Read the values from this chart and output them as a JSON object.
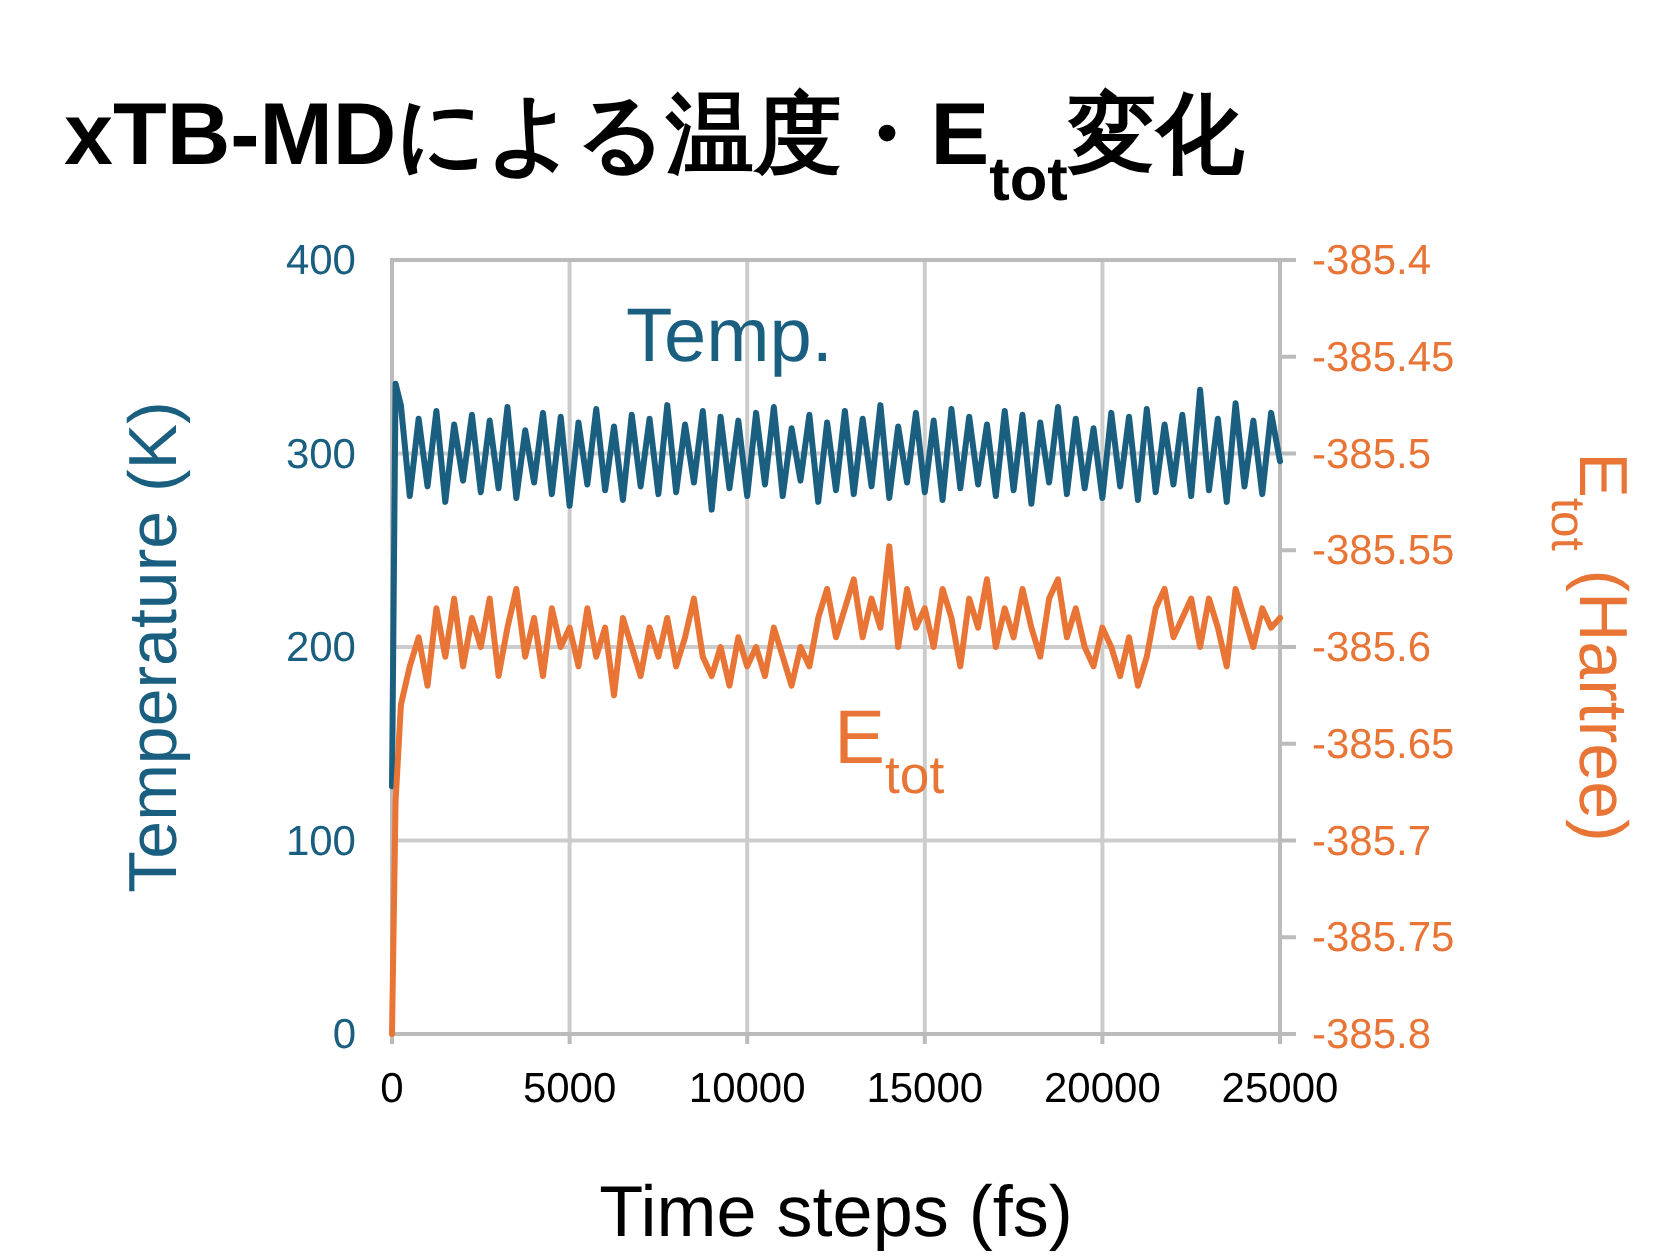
{
  "chart_data": {
    "type": "line",
    "title": "xTB-MDによる温度・E$_{tot}$変化",
    "xlabel": "Time steps (fs)",
    "ylabel": "Temperature (K)",
    "y2label": "E$_{tot}$ (Hartree)",
    "x": [
      0,
      100,
      250,
      500,
      750,
      1000,
      1250,
      1500,
      1750,
      2000,
      2250,
      2500,
      2750,
      3000,
      3250,
      3500,
      3750,
      4000,
      4250,
      4500,
      4750,
      5000,
      5250,
      5500,
      5750,
      6000,
      6250,
      6500,
      6750,
      7000,
      7250,
      7500,
      7750,
      8000,
      8250,
      8500,
      8750,
      9000,
      9250,
      9500,
      9750,
      10000,
      10250,
      10500,
      10750,
      11000,
      11250,
      11500,
      11750,
      12000,
      12250,
      12500,
      12750,
      13000,
      13250,
      13500,
      13750,
      14000,
      14250,
      14500,
      14750,
      15000,
      15250,
      15500,
      15750,
      16000,
      16250,
      16500,
      16750,
      17000,
      17250,
      17500,
      17750,
      18000,
      18250,
      18500,
      18750,
      19000,
      19250,
      19500,
      19750,
      20000,
      20250,
      20500,
      20750,
      21000,
      21250,
      21500,
      21750,
      22000,
      22250,
      22500,
      22750,
      23000,
      23250,
      23500,
      23750,
      24000,
      24250,
      24500,
      24750,
      25000
    ],
    "series": [
      {
        "name": "Temp.",
        "color": "#1a5f80",
        "values": [
          128,
          336,
          325,
          278,
          318,
          283,
          322,
          275,
          315,
          286,
          320,
          280,
          317,
          282,
          324,
          277,
          312,
          285,
          321,
          279,
          319,
          273,
          316,
          284,
          323,
          281,
          314,
          276,
          320,
          283,
          318,
          279,
          325,
          280,
          315,
          285,
          322,
          271,
          319,
          282,
          317,
          278,
          321,
          284,
          324,
          278,
          313,
          286,
          320,
          275,
          316,
          281,
          322,
          279,
          318,
          283,
          325,
          277,
          314,
          285,
          321,
          280,
          317,
          276,
          323,
          282,
          319,
          284,
          315,
          278,
          322,
          281,
          320,
          274,
          316,
          285,
          324,
          279,
          318,
          282,
          313,
          277,
          321,
          283,
          319,
          276,
          323,
          280,
          315,
          284,
          320,
          278,
          333,
          281,
          318,
          275,
          326,
          283,
          317,
          279,
          321,
          296
        ]
      },
      {
        "name": "E$_{tot}$",
        "color": "#e87536",
        "axis": "y2",
        "values": [
          -385.8,
          -385.68,
          -385.63,
          -385.61,
          -385.595,
          -385.62,
          -385.58,
          -385.605,
          -385.575,
          -385.61,
          -385.585,
          -385.6,
          -385.575,
          -385.615,
          -385.59,
          -385.57,
          -385.605,
          -385.585,
          -385.615,
          -385.58,
          -385.6,
          -385.59,
          -385.61,
          -385.58,
          -385.605,
          -385.59,
          -385.625,
          -385.585,
          -385.6,
          -385.615,
          -385.59,
          -385.605,
          -385.585,
          -385.61,
          -385.595,
          -385.575,
          -385.605,
          -385.615,
          -385.6,
          -385.62,
          -385.595,
          -385.61,
          -385.6,
          -385.615,
          -385.59,
          -385.605,
          -385.62,
          -385.6,
          -385.61,
          -385.585,
          -385.57,
          -385.595,
          -385.58,
          -385.565,
          -385.595,
          -385.575,
          -385.59,
          -385.548,
          -385.6,
          -385.57,
          -385.59,
          -385.58,
          -385.6,
          -385.57,
          -385.585,
          -385.61,
          -385.575,
          -385.59,
          -385.565,
          -385.6,
          -385.58,
          -385.595,
          -385.57,
          -385.59,
          -385.605,
          -385.575,
          -385.565,
          -385.595,
          -385.58,
          -385.6,
          -385.61,
          -385.59,
          -385.6,
          -385.615,
          -385.595,
          -385.62,
          -385.605,
          -385.58,
          -385.57,
          -385.595,
          -385.585,
          -385.575,
          -385.6,
          -385.575,
          -385.59,
          -385.61,
          -385.57,
          -385.585,
          -385.6,
          -385.58,
          -385.59,
          -385.585
        ]
      }
    ],
    "xlim": [
      0,
      25000
    ],
    "xticks": [
      0,
      5000,
      10000,
      15000,
      20000,
      25000
    ],
    "ylim": [
      0,
      400
    ],
    "yticks": [
      0,
      100,
      200,
      300,
      400
    ],
    "y2lim": [
      -385.8,
      -385.4
    ],
    "y2ticks": [
      -385.8,
      -385.75,
      -385.7,
      -385.65,
      -385.6,
      -385.55,
      -385.5,
      -385.45,
      -385.4
    ],
    "grid": true,
    "line_style": "solid"
  }
}
